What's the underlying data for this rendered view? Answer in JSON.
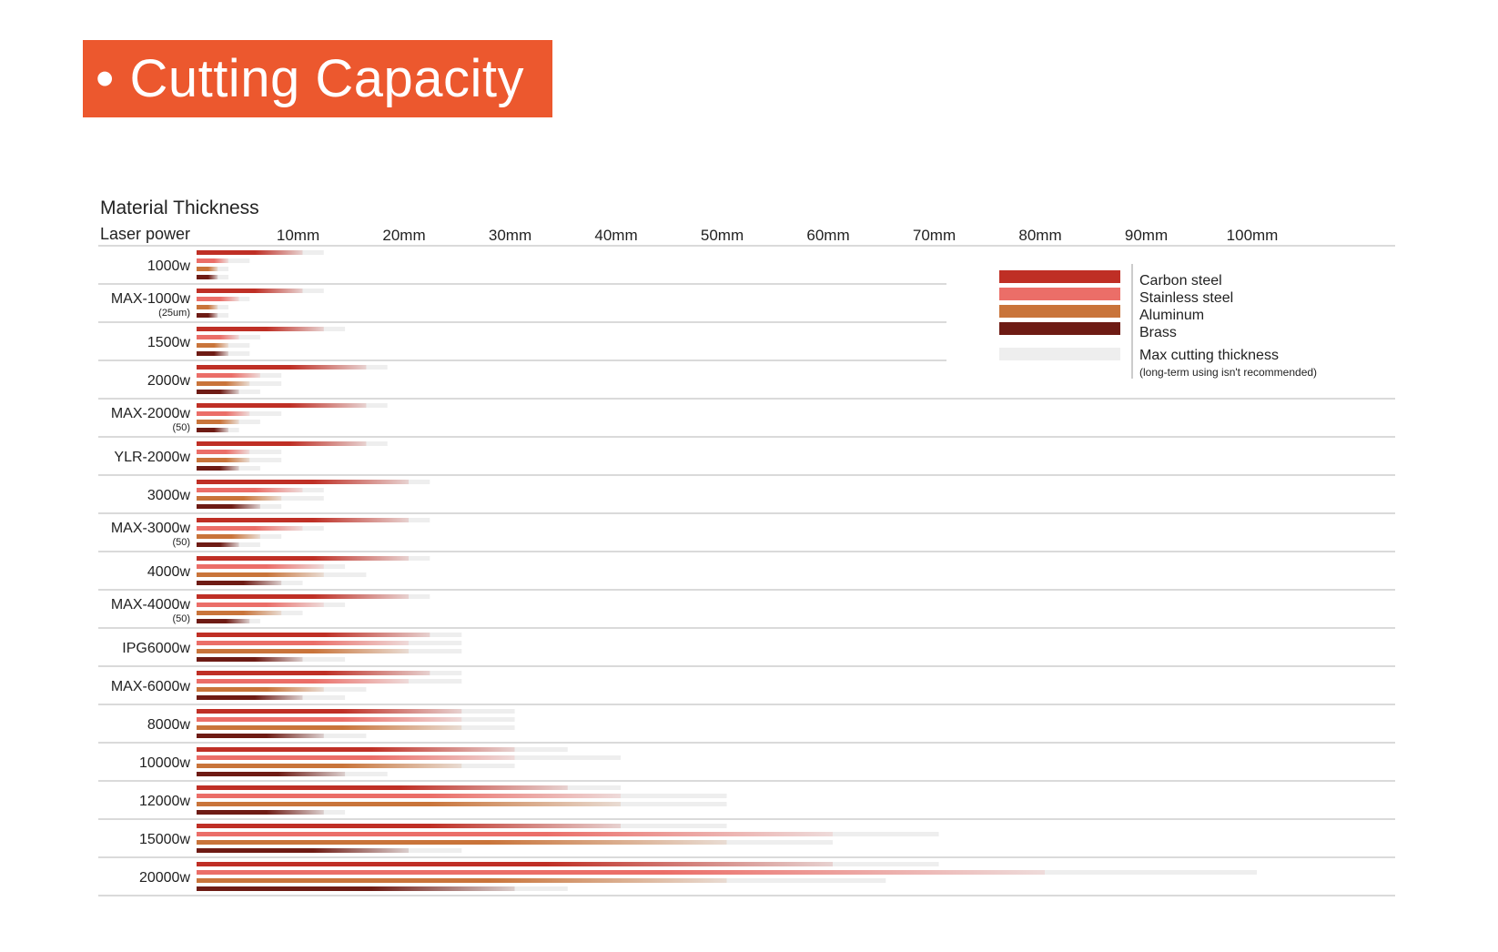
{
  "banner": {
    "bullet": "•",
    "title": "Cutting Capacity"
  },
  "colors": {
    "banner": "#ec582e",
    "carbon_steel": "#bf2f25",
    "stainless_steel": "#eb6e68",
    "aluminum": "#c9743a",
    "brass": "#6e1b14",
    "max_thickness": "#eeeeee",
    "grid": "#c4c4c4"
  },
  "chart_data": {
    "type": "bar",
    "orientation": "horizontal",
    "title": "Material Thickness",
    "ylabel": "Laser power",
    "unit": "mm",
    "xlim": [
      0,
      100
    ],
    "x_ticks": [
      "10mm",
      "20mm",
      "30mm",
      "40mm",
      "50mm",
      "60mm",
      "70mm",
      "80mm",
      "90mm",
      "100mm"
    ],
    "grid": "row separators",
    "legend_position": "top-right",
    "legend": {
      "materials": [
        "Carbon steel",
        "Stainless steel",
        "Aluminum",
        "Brass"
      ],
      "max_label": "Max cutting thickness",
      "max_note": "(long-term using isn't recommended)"
    },
    "series_keys": [
      "carbon_steel",
      "stainless_steel",
      "aluminum",
      "brass"
    ],
    "rows": [
      {
        "label": "1000w",
        "sub": "",
        "max": [
          12,
          5,
          3,
          3
        ],
        "rec": [
          10,
          3,
          2,
          2
        ]
      },
      {
        "label": "MAX-1000w",
        "sub": "(25um)",
        "max": [
          12,
          5,
          3,
          3
        ],
        "rec": [
          10,
          4,
          2,
          2
        ]
      },
      {
        "label": "1500w",
        "sub": "",
        "max": [
          14,
          6,
          5,
          5
        ],
        "rec": [
          12,
          4,
          3,
          3
        ]
      },
      {
        "label": "2000w",
        "sub": "",
        "max": [
          18,
          8,
          8,
          6
        ],
        "rec": [
          16,
          6,
          5,
          4
        ]
      },
      {
        "label": "MAX-2000w",
        "sub": "(50)",
        "max": [
          18,
          8,
          6,
          4
        ],
        "rec": [
          16,
          5,
          4,
          3
        ]
      },
      {
        "label": "YLR-2000w",
        "sub": "",
        "max": [
          18,
          8,
          8,
          6
        ],
        "rec": [
          16,
          5,
          5,
          4
        ]
      },
      {
        "label": "3000w",
        "sub": "",
        "max": [
          22,
          12,
          12,
          8
        ],
        "rec": [
          20,
          10,
          8,
          6
        ]
      },
      {
        "label": "MAX-3000w",
        "sub": "(50)",
        "max": [
          22,
          12,
          8,
          6
        ],
        "rec": [
          20,
          10,
          6,
          4
        ]
      },
      {
        "label": "4000w",
        "sub": "",
        "max": [
          22,
          14,
          16,
          10
        ],
        "rec": [
          20,
          12,
          12,
          8
        ]
      },
      {
        "label": "MAX-4000w",
        "sub": "(50)",
        "max": [
          22,
          14,
          10,
          6
        ],
        "rec": [
          20,
          12,
          8,
          5
        ]
      },
      {
        "label": "IPG6000w",
        "sub": "",
        "max": [
          25,
          25,
          25,
          14
        ],
        "rec": [
          22,
          20,
          20,
          10
        ]
      },
      {
        "label": "MAX-6000w",
        "sub": "",
        "max": [
          25,
          25,
          16,
          14
        ],
        "rec": [
          22,
          20,
          12,
          10
        ]
      },
      {
        "label": "8000w",
        "sub": "",
        "max": [
          30,
          30,
          30,
          16
        ],
        "rec": [
          25,
          25,
          25,
          12
        ]
      },
      {
        "label": "10000w",
        "sub": "",
        "max": [
          35,
          40,
          30,
          18
        ],
        "rec": [
          30,
          30,
          25,
          14
        ]
      },
      {
        "label": "12000w",
        "sub": "",
        "max": [
          40,
          50,
          50,
          14
        ],
        "rec": [
          35,
          40,
          40,
          12
        ]
      },
      {
        "label": "15000w",
        "sub": "",
        "max": [
          50,
          70,
          60,
          25
        ],
        "rec": [
          40,
          60,
          50,
          20
        ]
      },
      {
        "label": "20000w",
        "sub": "",
        "max": [
          70,
          100,
          65,
          35
        ],
        "rec": [
          60,
          80,
          50,
          30
        ]
      }
    ]
  }
}
